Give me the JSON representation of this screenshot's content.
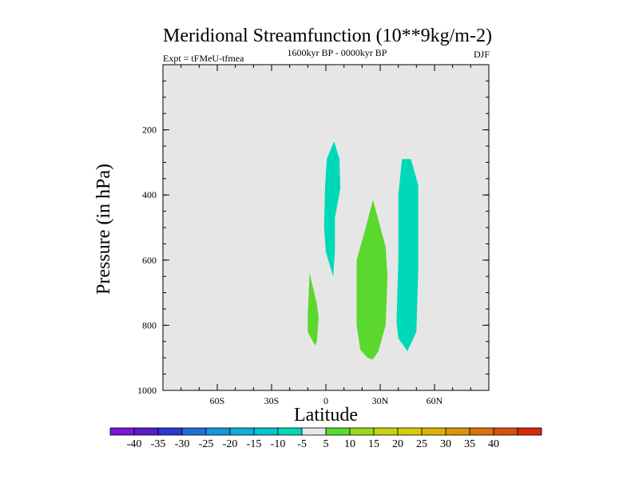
{
  "chart_data": {
    "type": "contour",
    "title": "Meridional Streamfunction (10**9kg/m-2)",
    "subtitle_left": "Expt = tFMeU-tfmea",
    "subtitle_center": "1600kyr BP - 0000kyr BP",
    "subtitle_right": "DJF",
    "xlabel": "Latitude",
    "ylabel": "Pressure (in hPa)",
    "xlim": [
      -90,
      90
    ],
    "ylim": [
      0,
      1000
    ],
    "y_inverted": true,
    "x_ticks": [
      {
        "value": -60,
        "label": "60S"
      },
      {
        "value": -30,
        "label": "30S"
      },
      {
        "value": 0,
        "label": "0"
      },
      {
        "value": 30,
        "label": "30N"
      },
      {
        "value": 60,
        "label": "60N"
      }
    ],
    "y_ticks": [
      {
        "value": 200,
        "label": "200"
      },
      {
        "value": 400,
        "label": "400"
      },
      {
        "value": 600,
        "label": "600"
      },
      {
        "value": 800,
        "label": "800"
      },
      {
        "value": 1000,
        "label": "1000"
      }
    ],
    "background_color": "#e6e6e6",
    "regions": [
      {
        "name": "negative-cell-equatorial",
        "level": -10,
        "color": "#00d9b8",
        "points": [
          [
            0.5,
            290
          ],
          [
            4.5,
            235
          ],
          [
            7.5,
            290
          ],
          [
            8,
            380
          ],
          [
            5,
            470
          ],
          [
            5,
            575
          ],
          [
            4,
            650
          ],
          [
            0,
            575
          ],
          [
            -1,
            500
          ],
          [
            -0.5,
            380
          ]
        ]
      },
      {
        "name": "negative-cell-subtropical-north",
        "level": -10,
        "color": "#00d9b8",
        "points": [
          [
            42,
            290
          ],
          [
            47,
            290
          ],
          [
            51,
            370
          ],
          [
            51,
            630
          ],
          [
            50,
            820
          ],
          [
            45,
            880
          ],
          [
            40,
            840
          ],
          [
            39,
            790
          ],
          [
            40,
            600
          ],
          [
            40,
            400
          ]
        ]
      },
      {
        "name": "positive-cell-southern",
        "level": 5,
        "color": "#5ad82d",
        "points": [
          [
            -9,
            640
          ],
          [
            -5,
            735
          ],
          [
            -4,
            775
          ],
          [
            -5,
            850
          ],
          [
            -6,
            862
          ],
          [
            -10,
            820
          ],
          [
            -10,
            770
          ]
        ]
      },
      {
        "name": "positive-cell-northern",
        "level": 5,
        "color": "#5ad82d",
        "points": [
          [
            26,
            415
          ],
          [
            33,
            560
          ],
          [
            34,
            650
          ],
          [
            33,
            800
          ],
          [
            29,
            880
          ],
          [
            26,
            905
          ],
          [
            23,
            900
          ],
          [
            19,
            875
          ],
          [
            17,
            800
          ],
          [
            17,
            600
          ],
          [
            22,
            500
          ]
        ]
      }
    ],
    "colorbar": {
      "colors": [
        "#7a14d8",
        "#5a19cc",
        "#2a38d0",
        "#1f6ed6",
        "#1497db",
        "#0db1d8",
        "#03c4cf",
        "#00d9b8",
        "#e6e6e6",
        "#5ad82d",
        "#9cd81c",
        "#c3d412",
        "#d8ca0c",
        "#dcb308",
        "#dc9507",
        "#d97307",
        "#d95009",
        "#d7280a"
      ],
      "labels": [
        "-40",
        "-35",
        "-30",
        "-25",
        "-20",
        "-15",
        "-10",
        "-5",
        "5",
        "10",
        "15",
        "20",
        "25",
        "30",
        "35",
        "40"
      ]
    }
  }
}
